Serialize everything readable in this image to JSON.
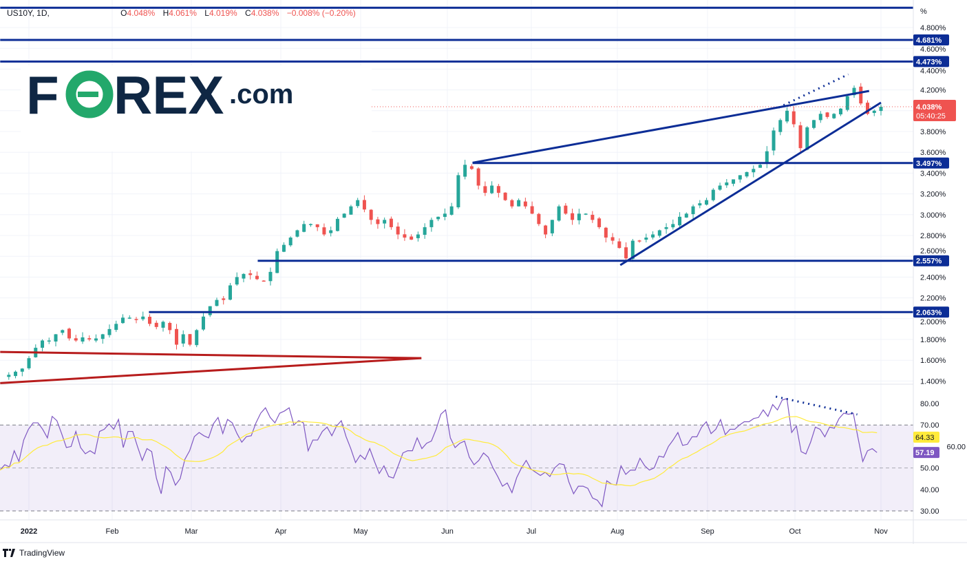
{
  "header": {
    "symbol": "US10Y, 1D,",
    "open_label": "O",
    "open": "4.048%",
    "high_label": "H",
    "high": "4.061%",
    "low_label": "L",
    "low": "4.019%",
    "close_label": "C",
    "close": "4.038%",
    "change": "−0.008% (−0.20%)"
  },
  "logo": {
    "brand": "F",
    "o": "O",
    "rest": "REX",
    "suffix": ".com"
  },
  "footer": {
    "brand": "TradingView"
  },
  "colors": {
    "up": "#26a69a",
    "down": "#ef5350",
    "level": "#0c2d96",
    "channel": "#b71c1c",
    "rsi": "#7e57c2",
    "rsi_ma": "#ffeb3b",
    "logo_dark": "#0f2744",
    "logo_green": "#23a86b"
  },
  "chart_data": {
    "type": "candlestick",
    "symbol": "US10Y",
    "interval": "1D",
    "price_axis": {
      "unit": "%",
      "range": [
        1.35,
        5.0
      ],
      "ticks": [
        "4.800%",
        "4.600%",
        "4.400%",
        "4.200%",
        "3.800%",
        "3.600%",
        "3.400%",
        "3.200%",
        "3.000%",
        "2.800%",
        "2.600%",
        "2.400%",
        "2.200%",
        "2.000%",
        "1.800%",
        "1.600%",
        "1.400%"
      ]
    },
    "time_axis": {
      "labels": [
        "2022",
        "Feb",
        "Mar",
        "Apr",
        "May",
        "Jun",
        "Jul",
        "Aug",
        "Sep",
        "Oct",
        "Nov"
      ]
    },
    "range": [
      "2021-12-27",
      "2022-11-01"
    ],
    "closes": [
      1.46,
      1.49,
      1.52,
      1.62,
      1.72,
      1.79,
      1.79,
      1.85,
      1.89,
      1.81,
      1.79,
      1.82,
      1.8,
      1.81,
      1.85,
      1.9,
      1.95,
      2.01,
      2.01,
      1.99,
      2.02,
      1.95,
      1.92,
      1.97,
      1.89,
      1.75,
      1.85,
      1.75,
      1.89,
      2.02,
      2.12,
      2.18,
      2.18,
      2.32,
      2.4,
      2.43,
      2.42,
      2.38,
      2.36,
      2.45,
      2.65,
      2.71,
      2.78,
      2.85,
      2.91,
      2.91,
      2.88,
      2.81,
      2.85,
      2.96,
      3.01,
      3.08,
      3.14,
      3.05,
      2.95,
      2.91,
      2.95,
      2.88,
      2.81,
      2.78,
      2.76,
      2.81,
      2.88,
      2.95,
      2.98,
      3.01,
      3.08,
      3.38,
      3.48,
      3.44,
      3.28,
      3.21,
      3.28,
      3.21,
      3.14,
      3.08,
      3.14,
      3.08,
      3.01,
      2.91,
      2.81,
      2.95,
      3.08,
      3.01,
      2.95,
      3.01,
      3.01,
      2.95,
      2.88,
      2.78,
      2.75,
      2.68,
      2.58,
      2.75,
      2.75,
      2.78,
      2.81,
      2.85,
      2.88,
      2.91,
      2.98,
      3.01,
      3.08,
      3.11,
      3.14,
      3.24,
      3.28,
      3.31,
      3.34,
      3.38,
      3.41,
      3.44,
      3.48,
      3.61,
      3.81,
      3.91,
      4.0,
      3.87,
      3.64,
      3.84,
      3.91,
      3.97,
      3.94,
      3.97,
      4.02,
      4.14,
      4.22,
      4.07,
      3.97,
      4.0,
      4.038
    ],
    "levels": [
      {
        "value": 4.99,
        "label": "",
        "from": "2021-12-24"
      },
      {
        "value": 4.681,
        "label": "4.681%",
        "from": "2021-12-24"
      },
      {
        "value": 4.473,
        "label": "4.473%",
        "from": "2021-12-24"
      },
      {
        "value": 3.497,
        "label": "3.497%",
        "from": "2022-06-10"
      },
      {
        "value": 2.557,
        "label": "2.557%",
        "from": "2022-03-24"
      },
      {
        "value": 2.063,
        "label": "2.063%",
        "from": "2022-02-14"
      }
    ],
    "trendlines": [
      {
        "color": "channel",
        "style": "solid",
        "p1": [
          "2021-12-24",
          1.68
        ],
        "p2": [
          "2022-05-23",
          1.62
        ]
      },
      {
        "color": "channel",
        "style": "solid",
        "p1": [
          "2021-12-24",
          1.38
        ],
        "p2": [
          "2022-05-23",
          1.62
        ]
      },
      {
        "color": "level",
        "style": "solid",
        "p1": [
          "2022-06-10",
          3.5
        ],
        "p2": [
          "2022-10-28",
          4.19
        ]
      },
      {
        "color": "level",
        "style": "solid",
        "p1": [
          "2022-08-02",
          2.515
        ],
        "p2": [
          "2022-11-01",
          4.078
        ]
      },
      {
        "color": "level",
        "style": "dotted",
        "p1": [
          "2022-09-27",
          4.03
        ],
        "p2": [
          "2022-10-21",
          4.35
        ]
      }
    ],
    "last_price": {
      "value": 4.038,
      "label": "4.038%",
      "countdown": "05:40:25"
    },
    "rsi": {
      "ticks": [
        "80.00",
        "70.00",
        "60.00",
        "50.00",
        "40.00",
        "30.00"
      ],
      "range": [
        28,
        88
      ],
      "bands": [
        70,
        50,
        30
      ],
      "values": [
        49,
        51.5,
        50.5,
        58,
        53,
        63,
        68,
        71,
        71,
        68,
        64,
        74,
        72,
        66,
        59.5,
        60,
        67,
        59.5,
        56.6,
        58,
        56.6,
        67,
        68,
        70.5,
        68,
        72.6,
        59.5,
        67,
        67,
        60,
        53.5,
        59,
        57.6,
        45.2,
        38,
        50.6,
        48,
        42,
        45,
        54,
        58,
        64.6,
        66.5,
        65,
        64,
        70.5,
        73.5,
        66,
        72.6,
        71,
        66,
        62,
        64.6,
        65,
        71,
        75.5,
        78,
        73.5,
        71,
        75.5,
        76.5,
        78,
        70,
        72,
        71,
        58,
        63,
        63,
        67,
        69,
        65,
        69.5,
        72,
        64.6,
        59,
        52.5,
        56,
        54,
        59,
        53,
        47.4,
        51,
        46,
        45.3,
        51,
        57,
        58,
        58,
        64,
        59,
        61.5,
        62.5,
        68,
        75,
        77,
        64,
        59.5,
        61.5,
        62.5,
        55,
        51.5,
        53.5,
        57,
        55,
        50,
        46,
        41.5,
        43,
        38.5,
        45.5,
        50,
        53.5,
        49.5,
        48,
        46.5,
        48,
        46,
        50,
        52,
        51.5,
        43.5,
        38,
        41.5,
        41.5,
        40.5,
        36,
        35,
        32,
        44,
        42.5,
        42,
        51,
        47,
        49,
        49,
        54.5,
        51,
        49,
        50,
        55.5,
        55,
        60,
        63,
        66.5,
        60.5,
        61,
        64.5,
        64.5,
        69,
        71.5,
        66,
        68,
        72.5,
        65.5,
        68,
        68,
        70,
        71.5,
        71.5,
        73,
        73.5,
        77,
        74,
        79.5,
        77,
        81.6,
        82.3,
        66.5,
        69.5,
        57.6,
        56.5,
        62,
        69,
        68,
        64.5,
        69,
        68.5,
        73,
        75.5,
        75,
        75.5,
        64,
        53,
        58,
        59,
        57.19
      ],
      "last": "57.19",
      "ma_last": "64.33",
      "divergence": {
        "p1": [
          "2022-09-26",
          83.2
        ],
        "p2": [
          "2022-10-24",
          74.9
        ]
      }
    }
  }
}
